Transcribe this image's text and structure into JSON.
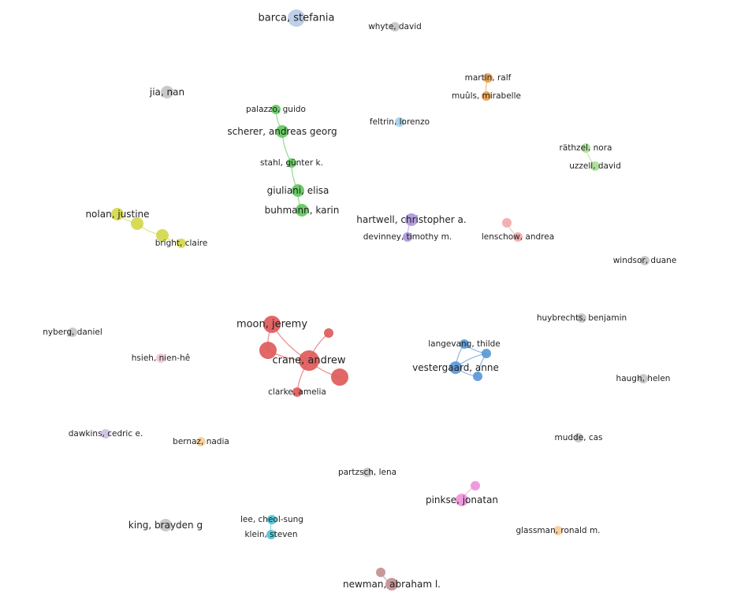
{
  "palette": {
    "gray": "#c4c4c4",
    "blue_light": "#b9cbe6",
    "orange": "#e9a04f",
    "cyan_light": "#9fd0ec",
    "green": "#62c85e",
    "green_light": "#a9de96",
    "yellow": "#d3d84c",
    "purple": "#ac96dc",
    "salmon": "#f3a9a9",
    "red": "#e05a5a",
    "pink_light": "#f3c4d8",
    "blue": "#5a98d8",
    "lavender": "#cfbfe3",
    "magenta": "#ee94dc",
    "teal": "#4fc6d9",
    "peach": "#f6cf99",
    "brown": "#c49090"
  },
  "nodes": [
    {
      "id": "barca",
      "label": "barca, stefania",
      "color": "blue_light",
      "size": "lg"
    },
    {
      "id": "whyte",
      "label": "whyte, david",
      "color": "gray",
      "size": "sm"
    },
    {
      "id": "martin",
      "label": "martin, ralf",
      "color": "orange",
      "size": "sm"
    },
    {
      "id": "muuls",
      "label": "muûls, mirabelle",
      "color": "orange",
      "size": "sm"
    },
    {
      "id": "jia",
      "label": "jia, nan",
      "color": "gray",
      "size": "md"
    },
    {
      "id": "palazzo",
      "label": "palazzo, guido",
      "color": "green",
      "size": "sm"
    },
    {
      "id": "scherer",
      "label": "scherer, andreas georg",
      "color": "green",
      "size": "md"
    },
    {
      "id": "feltrin",
      "label": "feltrin, lorenzo",
      "color": "cyan_light",
      "size": "sm"
    },
    {
      "id": "rathzel",
      "label": "räthzel, nora",
      "color": "green_light",
      "size": "sm"
    },
    {
      "id": "uzzell",
      "label": "uzzell, david",
      "color": "green_light",
      "size": "sm"
    },
    {
      "id": "stahl",
      "label": "stahl, günter k.",
      "color": "green",
      "size": "sm"
    },
    {
      "id": "giuliani",
      "label": "giuliani, elisa",
      "color": "green",
      "size": "md"
    },
    {
      "id": "buhmann",
      "label": "buhmann, karin",
      "color": "green",
      "size": "md"
    },
    {
      "id": "nolan",
      "label": "nolan, justine",
      "color": "yellow",
      "size": "md"
    },
    {
      "id": "yel1",
      "label": "",
      "color": "yellow",
      "size": "md"
    },
    {
      "id": "yel2",
      "label": "",
      "color": "yellow",
      "size": "md"
    },
    {
      "id": "bright",
      "label": "bright, claire",
      "color": "yellow",
      "size": "sm"
    },
    {
      "id": "hartwell",
      "label": "hartwell, christopher a.",
      "color": "purple",
      "size": "md"
    },
    {
      "id": "devinney",
      "label": "devinney, timothy m.",
      "color": "purple",
      "size": "sm"
    },
    {
      "id": "sal1",
      "label": "",
      "color": "salmon",
      "size": "sm"
    },
    {
      "id": "lenschow",
      "label": "lenschow, andrea",
      "color": "salmon",
      "size": "sm"
    },
    {
      "id": "windsor",
      "label": "windsor, duane",
      "color": "gray",
      "size": "sm"
    },
    {
      "id": "moon",
      "label": "moon, jeremy",
      "color": "red",
      "size": "lg"
    },
    {
      "id": "red1",
      "label": "",
      "color": "red",
      "size": "sm"
    },
    {
      "id": "red2",
      "label": "",
      "color": "red",
      "size": "lg"
    },
    {
      "id": "crane",
      "label": "crane, andrew",
      "color": "red",
      "size": "xl"
    },
    {
      "id": "red3",
      "label": "",
      "color": "red",
      "size": "lg"
    },
    {
      "id": "clarke",
      "label": "clarke, amelia",
      "color": "red",
      "size": "sm"
    },
    {
      "id": "nyberg",
      "label": "nyberg, daniel",
      "color": "gray",
      "size": "sm"
    },
    {
      "id": "hsieh",
      "label": "hsieh, nien-hê",
      "color": "pink_light",
      "size": "sm"
    },
    {
      "id": "huybrechts",
      "label": "huybrechts, benjamin",
      "color": "gray",
      "size": "sm"
    },
    {
      "id": "langevang",
      "label": "langevang, thilde",
      "color": "blue",
      "size": "sm"
    },
    {
      "id": "blu1",
      "label": "",
      "color": "blue",
      "size": "sm"
    },
    {
      "id": "vestergaard",
      "label": "vestergaard, anne",
      "color": "blue",
      "size": "md"
    },
    {
      "id": "blu2",
      "label": "",
      "color": "blue",
      "size": "sm"
    },
    {
      "id": "haugh",
      "label": "haugh, helen",
      "color": "gray",
      "size": "sm"
    },
    {
      "id": "dawkins",
      "label": "dawkins, cedric e.",
      "color": "lavender",
      "size": "sm"
    },
    {
      "id": "bernaz",
      "label": "bernaz, nadia",
      "color": "peach",
      "size": "sm"
    },
    {
      "id": "mudde",
      "label": "mudde, cas",
      "color": "gray",
      "size": "sm"
    },
    {
      "id": "partzsch",
      "label": "partzsch, lena",
      "color": "gray",
      "size": "sm"
    },
    {
      "id": "mag1",
      "label": "",
      "color": "magenta",
      "size": "sm"
    },
    {
      "id": "pinkse",
      "label": "pinkse, jonatan",
      "color": "magenta",
      "size": "md"
    },
    {
      "id": "lee",
      "label": "lee, cheol-sung",
      "color": "teal",
      "size": "sm"
    },
    {
      "id": "klein",
      "label": "klein, steven",
      "color": "teal",
      "size": "sm"
    },
    {
      "id": "king",
      "label": "king, brayden g",
      "color": "gray",
      "size": "md"
    },
    {
      "id": "glassman",
      "label": "glassman, ronald m.",
      "color": "peach",
      "size": "sm"
    },
    {
      "id": "bro1",
      "label": "",
      "color": "brown",
      "size": "sm"
    },
    {
      "id": "newman",
      "label": "newman, abraham l.",
      "color": "brown",
      "size": "md"
    }
  ],
  "links": [
    {
      "source": "palazzo",
      "target": "scherer"
    },
    {
      "source": "scherer",
      "target": "stahl"
    },
    {
      "source": "stahl",
      "target": "giuliani"
    },
    {
      "source": "giuliani",
      "target": "buhmann"
    },
    {
      "source": "martin",
      "target": "muuls"
    },
    {
      "source": "rathzel",
      "target": "uzzell"
    },
    {
      "source": "nolan",
      "target": "yel1"
    },
    {
      "source": "yel1",
      "target": "yel2"
    },
    {
      "source": "yel2",
      "target": "bright"
    },
    {
      "source": "hartwell",
      "target": "devinney"
    },
    {
      "source": "sal1",
      "target": "lenschow"
    },
    {
      "source": "moon",
      "target": "crane"
    },
    {
      "source": "moon",
      "target": "red2"
    },
    {
      "source": "red1",
      "target": "crane"
    },
    {
      "source": "red2",
      "target": "crane"
    },
    {
      "source": "crane",
      "target": "red3"
    },
    {
      "source": "crane",
      "target": "clarke"
    },
    {
      "source": "langevang",
      "target": "blu1"
    },
    {
      "source": "langevang",
      "target": "vestergaard"
    },
    {
      "source": "blu1",
      "target": "vestergaard"
    },
    {
      "source": "vestergaard",
      "target": "blu2"
    },
    {
      "source": "blu1",
      "target": "blu2"
    },
    {
      "source": "mag1",
      "target": "pinkse"
    },
    {
      "source": "lee",
      "target": "klein"
    },
    {
      "source": "bro1",
      "target": "newman"
    }
  ]
}
